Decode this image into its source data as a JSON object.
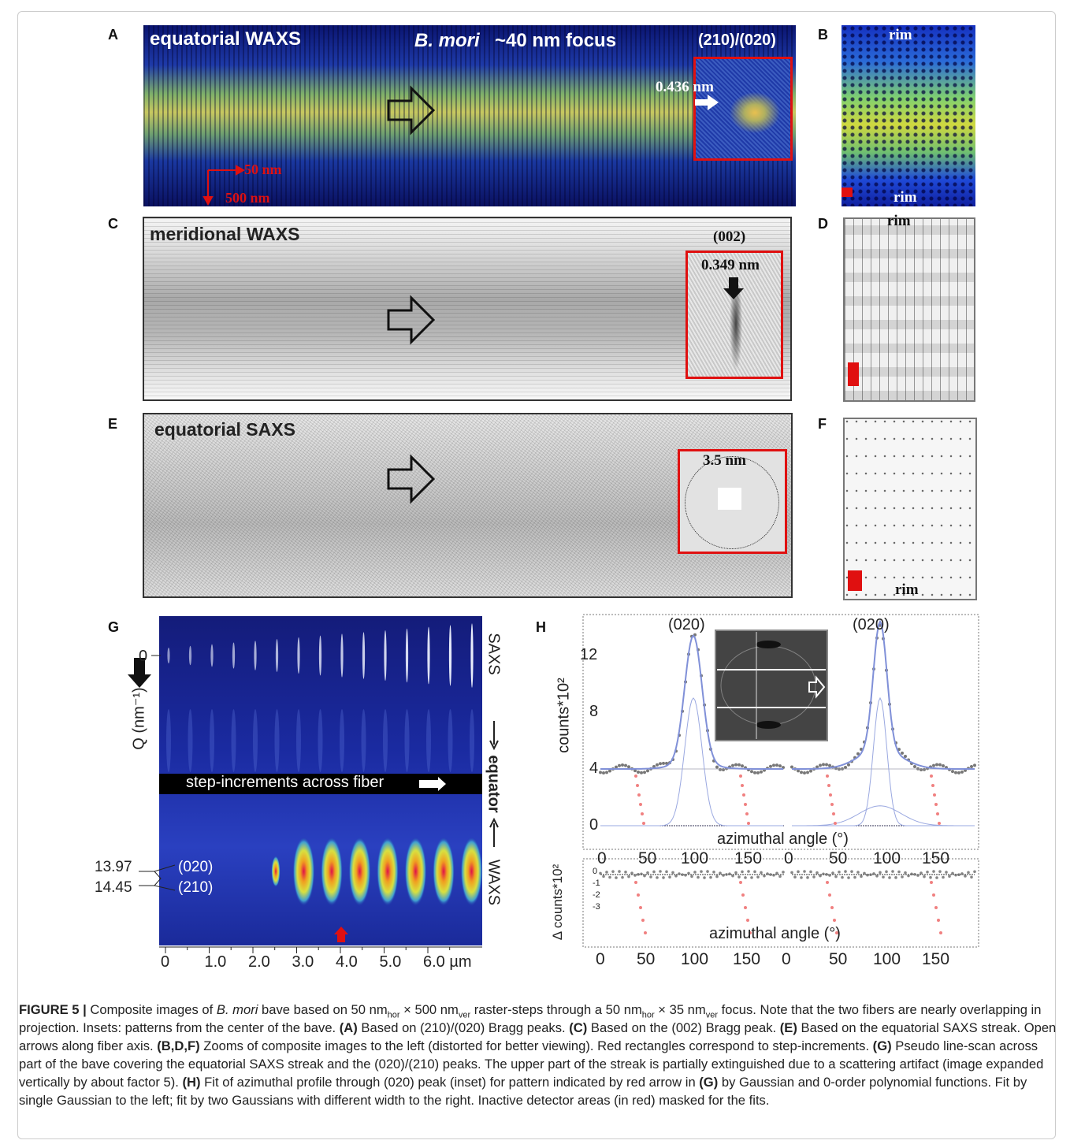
{
  "panels": {
    "A": {
      "label": "A",
      "title": "equatorial WAXS",
      "species": "B. mori",
      "focus": "~40 nm focus",
      "reflection": "(210)/(020)",
      "spacing": "0.436 nm",
      "step_h": "50 nm",
      "step_v": "500 nm"
    },
    "B": {
      "label": "B",
      "rim_top": "rim",
      "rim_bottom": "rim"
    },
    "C": {
      "label": "C",
      "title": "meridional WAXS",
      "reflection": "(002)",
      "spacing": "0.349 nm"
    },
    "D": {
      "label": "D",
      "rim": "rim"
    },
    "E": {
      "label": "E",
      "title": "equatorial SAXS",
      "spacing": "3.5 nm"
    },
    "F": {
      "label": "F",
      "rim": "rim"
    },
    "G": {
      "label": "G",
      "saxs_zero": "0",
      "y_axis": "Q (nm⁻¹)",
      "band": "step-increments across fiber",
      "saxs": "SAXS",
      "equator": "equator",
      "waxs": "WAXS",
      "q_020": "13.97",
      "q_210": "14.45",
      "peak_020": "(020)",
      "peak_210": "(210)",
      "xticks": [
        "0",
        "1.0",
        "2.0",
        "3.0",
        "4.0",
        "5.0",
        "6.0 µm"
      ]
    },
    "H": {
      "label": "H",
      "peak_left": "(020)",
      "peak_right": "(020)",
      "y_axis": "counts*10²",
      "x_axis": "azimuthal angle (°)",
      "yticks": [
        "0",
        "4",
        "8",
        "12"
      ],
      "xticks": [
        "0",
        "50",
        "100",
        "150",
        "0",
        "50",
        "100",
        "150"
      ],
      "resid_y_axis": "Δ counts*10²",
      "resid_yticks": [
        "0",
        "-1",
        "-2",
        "-3"
      ],
      "resid_x_axis": "azimuthal angle (°)",
      "resid_xticks": [
        "0",
        "50",
        "100",
        "150",
        "0",
        "50",
        "100",
        "150"
      ]
    }
  },
  "caption": [
    {
      "text": "FIGURE 5 |",
      "style": "bold"
    },
    {
      "text": " Composite images of ",
      "style": "normal"
    },
    {
      "text": "B. mori",
      "style": "italic"
    },
    {
      "text": " bave based on 50 nm",
      "style": "normal"
    },
    {
      "text": "hor",
      "style": "sub"
    },
    {
      "text": " × 500 nm",
      "style": "normal"
    },
    {
      "text": "ver",
      "style": "sub"
    },
    {
      "text": " raster-steps through a 50 nm",
      "style": "normal"
    },
    {
      "text": "hor",
      "style": "sub"
    },
    {
      "text": " × 35 nm",
      "style": "normal"
    },
    {
      "text": "ver",
      "style": "sub"
    },
    {
      "text": " focus. Note that the two fibers are nearly overlapping in projection. Insets: patterns from the center of the bave. ",
      "style": "normal"
    },
    {
      "text": "(A)",
      "style": "bold"
    },
    {
      "text": " Based on (210)/(020) Bragg peaks. ",
      "style": "normal"
    },
    {
      "text": "(C)",
      "style": "bold"
    },
    {
      "text": " Based on the (002) Bragg peak. ",
      "style": "normal"
    },
    {
      "text": "(E)",
      "style": "bold"
    },
    {
      "text": " Based on the equatorial SAXS streak. Open arrows along fiber axis. ",
      "style": "normal"
    },
    {
      "text": "(B,D,F)",
      "style": "bold"
    },
    {
      "text": " Zooms of composite images to the left (distorted for better viewing). Red rectangles correspond to step-increments. ",
      "style": "normal"
    },
    {
      "text": "(G)",
      "style": "bold"
    },
    {
      "text": " Pseudo line-scan across part of the bave covering the equatorial SAXS streak and the (020)/(210) peaks. The upper part of the streak is partially extinguished due to a scattering artifact (image expanded vertically by about factor 5). ",
      "style": "normal"
    },
    {
      "text": "(H)",
      "style": "bold"
    },
    {
      "text": " Fit of azimuthal profile through (020) peak (inset) for pattern indicated by red arrow in ",
      "style": "normal"
    },
    {
      "text": "(G)",
      "style": "bold"
    },
    {
      "text": " by Gaussian and 0-order polynomial functions. Fit by single Gaussian to the left; fit by two Gaussians with different width to the right. Inactive detector areas (in red) masked for the fits.",
      "style": "normal"
    }
  ]
}
